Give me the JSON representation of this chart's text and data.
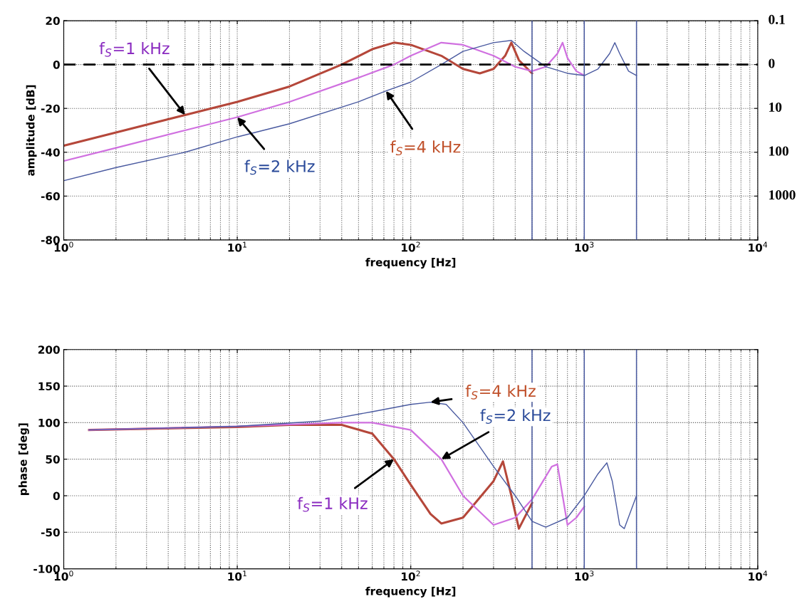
{
  "chart_data": [
    {
      "type": "line",
      "xlabel": "frequency [Hz]",
      "ylabel": "amplitude [dB]",
      "log": "x",
      "grid": true,
      "xlim": [
        1,
        10000
      ],
      "xticks": [
        {
          "value": 1,
          "label": "10$^{0}$"
        },
        {
          "value": 10,
          "label": "10$^{1}$"
        },
        {
          "value": 100,
          "label": "10$^{2}$"
        },
        {
          "value": 1000,
          "label": "10$^{3}$"
        },
        {
          "value": 10000,
          "label": "10$^{4}$"
        }
      ],
      "ylim": [
        -80,
        20
      ],
      "yticks": [
        -80,
        -60,
        -40,
        -20,
        0,
        20
      ],
      "series": [
        {
          "color": "#b5473a",
          "x": [
            1,
            2,
            5,
            10,
            20,
            40,
            60,
            80,
            100,
            150,
            200,
            250,
            300,
            350,
            380,
            420,
            500
          ],
          "values": [
            -37,
            -31,
            -23,
            -17,
            -10,
            0,
            7,
            10,
            9,
            4,
            -2,
            -4,
            -2,
            4,
            10,
            2,
            -4
          ]
        },
        {
          "color": "#d070e0",
          "x": [
            1,
            2,
            5,
            10,
            20,
            50,
            80,
            100,
            150,
            200,
            300,
            400,
            500,
            600,
            700,
            750,
            800,
            900,
            1000
          ],
          "values": [
            -44,
            -38,
            -30,
            -24,
            -17,
            -6,
            0,
            4,
            10,
            9,
            4,
            -1,
            -3,
            -1,
            5,
            10,
            3,
            -3,
            -5
          ]
        },
        {
          "color": "#4a5aa0",
          "x": [
            1,
            2,
            5,
            10,
            20,
            50,
            72,
            100,
            150,
            200,
            300,
            380,
            450,
            600,
            800,
            1000,
            1200,
            1400,
            1500,
            1600,
            1800,
            2000
          ],
          "values": [
            -53,
            -47,
            -40,
            -33,
            -27,
            -17,
            -12,
            -8,
            0,
            6,
            10,
            11,
            6,
            -1,
            -4,
            -5,
            -2,
            5,
            10,
            5,
            -3,
            -5
          ]
        }
      ],
      "ref_lines": [
        {
          "axis": "y",
          "value": 0,
          "color": "#000000",
          "line_style": "dashed"
        },
        {
          "axis": "x",
          "value": 500,
          "color": "#4a5aa0"
        },
        {
          "axis": "x",
          "value": 1000,
          "color": "#4a5aa0"
        },
        {
          "axis": "x",
          "value": 2000,
          "color": "#4a5aa0"
        }
      ],
      "annotations": [
        {
          "text": "f$_{S}$=1 kHz",
          "x": 5,
          "y": -23
        },
        {
          "text": "f$_{S}$=2 kHz",
          "x": 10,
          "y": -24
        },
        {
          "text": "f$_{S}$=4 kHz",
          "x": 72,
          "y": -12
        },
        "0.1",
        "0",
        "10",
        "100",
        "1000"
      ]
    },
    {
      "type": "line",
      "xlabel": "frequency [Hz]",
      "ylabel": "phase [deg]",
      "log": "x",
      "grid": true,
      "xlim": [
        1,
        10000
      ],
      "xticks": [
        {
          "value": 1,
          "label": "10$^{0}$"
        },
        {
          "value": 10,
          "label": "10$^{1}$"
        },
        {
          "value": 100,
          "label": "10$^{2}$"
        },
        {
          "value": 1000,
          "label": "10$^{3}$"
        },
        {
          "value": 10000,
          "label": "10$^{4}$"
        }
      ],
      "ylim": [
        -100,
        200
      ],
      "yticks": [
        -100,
        -50,
        0,
        50,
        100,
        150,
        200
      ],
      "series": [
        {
          "color": "#b5473a",
          "x": [
            1.4,
            10,
            20,
            40,
            60,
            80,
            100,
            130,
            150,
            200,
            300,
            340,
            380,
            420,
            500
          ],
          "values": [
            90,
            94,
            97,
            97,
            85,
            50,
            15,
            -25,
            -38,
            -30,
            20,
            47,
            0,
            -45,
            -10
          ]
        },
        {
          "color": "#d070e0",
          "x": [
            1.4,
            10,
            40,
            60,
            100,
            150,
            200,
            300,
            400,
            500,
            650,
            700,
            750,
            800,
            900,
            1000
          ],
          "values": [
            90,
            95,
            100,
            100,
            90,
            50,
            0,
            -40,
            -30,
            -5,
            40,
            43,
            0,
            -40,
            -30,
            -15
          ]
        },
        {
          "color": "#4a5aa0",
          "x": [
            1.4,
            10,
            30,
            60,
            100,
            130,
            160,
            200,
            300,
            400,
            500,
            600,
            800,
            1000,
            1200,
            1350,
            1450,
            1600,
            1700,
            2000
          ],
          "values": [
            90,
            95,
            102,
            115,
            125,
            128,
            125,
            100,
            40,
            0,
            -35,
            -43,
            -30,
            0,
            30,
            45,
            20,
            -40,
            -45,
            0
          ]
        }
      ],
      "ref_lines": [
        {
          "axis": "x",
          "value": 500,
          "color": "#4a5aa0"
        },
        {
          "axis": "x",
          "value": 1000,
          "color": "#4a5aa0"
        },
        {
          "axis": "x",
          "value": 2000,
          "color": "#4a5aa0"
        }
      ],
      "annotations": [
        {
          "text": "f$_{S}$=4 kHz",
          "x": 130,
          "y": 128
        },
        {
          "text": "f$_{S}$=2 kHz",
          "x": 150,
          "y": 50
        },
        {
          "text": "f$_{S}$=1 kHz",
          "x": 80,
          "y": 50
        }
      ]
    }
  ]
}
